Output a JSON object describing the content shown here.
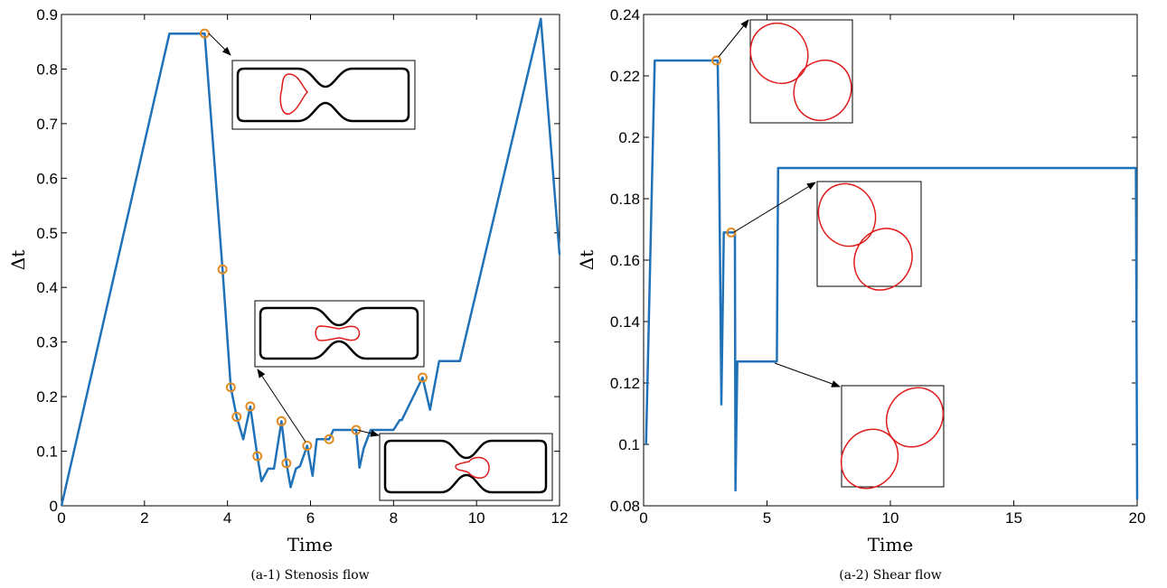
{
  "colors": {
    "series": "#1f72b8",
    "marker": "#e08c23",
    "shape": "#e01b1b",
    "frame": "#000000",
    "channel": "#000000"
  },
  "captions": {
    "left": "(a-1) Stenosis flow",
    "right": "(a-2) Shear flow"
  },
  "chart_data": [
    {
      "type": "line",
      "xlabel": "Time",
      "ylabel": "Δt",
      "xlim": [
        0,
        12
      ],
      "ylim": [
        0,
        0.9
      ],
      "xticks": [
        "0",
        "2",
        "4",
        "6",
        "8",
        "10",
        "12"
      ],
      "yticks": [
        "0",
        "0.1",
        "0.2",
        "0.3",
        "0.4",
        "0.5",
        "0.6",
        "0.7",
        "0.8",
        "0.9"
      ],
      "grid": false,
      "series": [
        {
          "x": [
            0,
            2.6,
            3.45,
            3.88,
            4.08,
            4.22,
            4.38,
            4.55,
            4.72,
            4.82,
            4.98,
            5.12,
            5.3,
            5.42,
            5.52,
            5.65,
            5.75,
            5.92,
            6.05,
            6.15,
            6.45,
            6.55,
            7.1,
            7.18,
            7.28,
            7.45,
            8.0,
            8.15,
            8.2,
            8.7,
            8.88,
            9.1,
            9.6,
            11.55,
            12.0
          ],
          "y": [
            0.0,
            0.865,
            0.865,
            0.433,
            0.217,
            0.163,
            0.122,
            0.182,
            0.091,
            0.045,
            0.068,
            0.068,
            0.155,
            0.078,
            0.034,
            0.068,
            0.073,
            0.11,
            0.055,
            0.122,
            0.122,
            0.139,
            0.139,
            0.07,
            0.105,
            0.139,
            0.139,
            0.157,
            0.157,
            0.235,
            0.176,
            0.265,
            0.265,
            0.892,
            0.46
          ]
        }
      ],
      "highlighted_points": [
        {
          "x": 3.45,
          "y": 0.865
        },
        {
          "x": 3.88,
          "y": 0.433
        },
        {
          "x": 4.08,
          "y": 0.217
        },
        {
          "x": 4.22,
          "y": 0.163
        },
        {
          "x": 4.55,
          "y": 0.182
        },
        {
          "x": 4.72,
          "y": 0.091
        },
        {
          "x": 5.3,
          "y": 0.155
        },
        {
          "x": 5.42,
          "y": 0.078
        },
        {
          "x": 5.92,
          "y": 0.11
        },
        {
          "x": 6.45,
          "y": 0.122
        },
        {
          "x": 7.1,
          "y": 0.139
        },
        {
          "x": 8.7,
          "y": 0.235
        }
      ]
    },
    {
      "type": "line",
      "xlabel": "Time",
      "ylabel": "Δt",
      "xlim": [
        0,
        20
      ],
      "ylim": [
        0.08,
        0.24
      ],
      "xticks": [
        "0",
        "5",
        "10",
        "15",
        "20"
      ],
      "yticks": [
        "0.08",
        "0.1",
        "0.12",
        "0.14",
        "0.16",
        "0.18",
        "0.2",
        "0.22",
        "0.24"
      ],
      "grid": false,
      "series": [
        {
          "x": [
            0.1,
            0.45,
            3.0,
            3.05,
            3.15,
            3.25,
            3.7,
            3.72,
            3.8,
            5.4,
            5.45,
            19.95,
            20.0
          ],
          "y": [
            0.1,
            0.225,
            0.225,
            0.2,
            0.113,
            0.169,
            0.169,
            0.085,
            0.127,
            0.127,
            0.19,
            0.19,
            0.082
          ]
        }
      ],
      "highlighted_points": [
        {
          "x": 2.95,
          "y": 0.225
        },
        {
          "x": 3.55,
          "y": 0.169
        }
      ]
    }
  ]
}
